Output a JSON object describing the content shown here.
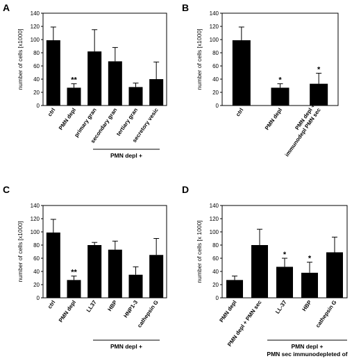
{
  "chart_data": [
    {
      "panel": "A",
      "type": "bar",
      "ylabel": "number of cells [x1000]",
      "ylim": [
        0,
        140
      ],
      "yticks": [
        0,
        20,
        40,
        60,
        80,
        100,
        120,
        140
      ],
      "categories": [
        "ctrl",
        "PMN depl",
        "primary gran",
        "secondary gran",
        "tertiary gran",
        "secretory vesic"
      ],
      "values": [
        99,
        27,
        82,
        67,
        28,
        40
      ],
      "errors": [
        20,
        6,
        33,
        21,
        6,
        26
      ],
      "significance": [
        "",
        "**",
        "",
        "",
        "",
        ""
      ],
      "group_label": "PMN depl +",
      "group_span": [
        2,
        5
      ]
    },
    {
      "panel": "B",
      "type": "bar",
      "ylabel": "number of cells [x1000]",
      "ylim": [
        0,
        140
      ],
      "yticks": [
        0,
        20,
        40,
        60,
        80,
        100,
        120,
        140
      ],
      "categories": [
        "ctrl",
        "PMN depl",
        "PMN depl +\nimmunodepl PMN sec"
      ],
      "values": [
        99,
        27,
        33
      ],
      "errors": [
        20,
        6,
        16
      ],
      "significance": [
        "",
        "*",
        "*"
      ]
    },
    {
      "panel": "C",
      "type": "bar",
      "ylabel": "number of cells [x1000]",
      "ylim": [
        0,
        140
      ],
      "yticks": [
        0,
        20,
        40,
        60,
        80,
        100,
        120,
        140
      ],
      "categories": [
        "ctrl",
        "PMN depl",
        "LL37",
        "HBP",
        "HNP1-3",
        "cathepsin G"
      ],
      "values": [
        99,
        27,
        80,
        73,
        35,
        65
      ],
      "errors": [
        20,
        6,
        4,
        13,
        12,
        25
      ],
      "significance": [
        "",
        "**",
        "",
        "",
        "",
        ""
      ],
      "group_label": "PMN depl +",
      "group_span": [
        2,
        5
      ]
    },
    {
      "panel": "D",
      "type": "bar",
      "ylabel": "number of cells [x 1000]",
      "ylim": [
        0,
        140
      ],
      "yticks": [
        0,
        20,
        40,
        60,
        80,
        100,
        120,
        140
      ],
      "categories": [
        "PMN depl",
        "PMN depl + PMN sec",
        "LL-37",
        "HBP",
        "cathepsin G"
      ],
      "values": [
        27,
        80,
        47,
        38,
        69
      ],
      "errors": [
        6,
        24,
        13,
        16,
        23
      ],
      "significance": [
        "",
        "",
        "*",
        "*",
        ""
      ],
      "group_label": "PMN depl +\nPMN sec immunodepleted of",
      "group_span": [
        2,
        4
      ]
    }
  ]
}
